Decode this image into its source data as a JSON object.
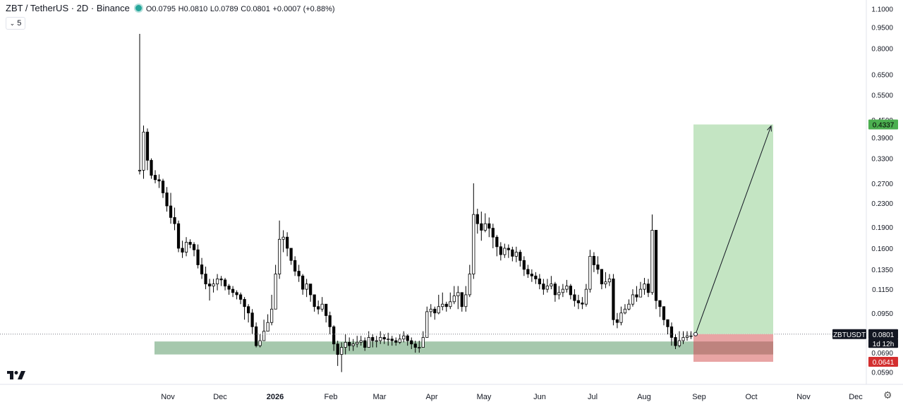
{
  "header": {
    "symbol": "ZBT / TetherUS · 2D · Binance",
    "open": "O0.0795",
    "high": "H0.0810",
    "low": "L0.0789",
    "close": "C0.0801",
    "change": "+0.0007 (+0.88%)",
    "indicator_button": "5",
    "status_color": "#26a69a"
  },
  "chart_data": {
    "type": "candlestick",
    "scale": "log",
    "ylim": [
      0.056,
      1.02
    ],
    "y_ticks": [
      1.1,
      0.95,
      0.8,
      0.65,
      0.55,
      0.45,
      0.39,
      0.33,
      0.27,
      0.23,
      0.19,
      0.16,
      0.135,
      0.115,
      0.095,
      0.069,
      0.059
    ],
    "y_tick_labels": [
      "1.1000",
      "0.9500",
      "0.8000",
      "0.6500",
      "0.5500",
      "0.4500",
      "0.3900",
      "0.3300",
      "0.2700",
      "0.2300",
      "0.1900",
      "0.1600",
      "0.1350",
      "0.1150",
      "0.0950",
      "0.0690",
      "0.0590"
    ],
    "x_ticks": [
      "Nov",
      "Dec",
      "2026",
      "Feb",
      "Mar",
      "Apr",
      "May",
      "Jun",
      "Jul",
      "Aug",
      "Sep",
      "Oct",
      "Nov",
      "Dec"
    ],
    "x_tick_bold": [
      "2026"
    ],
    "grid": false,
    "up_color": "#ffffff",
    "down_color": "#000000",
    "wick_color": "#000000",
    "closes": [
      0.3,
      0.408,
      0.325,
      0.288,
      0.278,
      0.275,
      0.25,
      0.225,
      0.205,
      0.195,
      0.16,
      0.155,
      0.168,
      0.165,
      0.158,
      0.14,
      0.13,
      0.12,
      0.118,
      0.12,
      0.125,
      0.124,
      0.118,
      0.115,
      0.112,
      0.11,
      0.106,
      0.1,
      0.095,
      0.085,
      0.073,
      0.076,
      0.082,
      0.088,
      0.098,
      0.13,
      0.172,
      0.175,
      0.16,
      0.145,
      0.133,
      0.128,
      0.115,
      0.12,
      0.11,
      0.1,
      0.098,
      0.102,
      0.093,
      0.085,
      0.074,
      0.068,
      0.072,
      0.075,
      0.073,
      0.074,
      0.075,
      0.076,
      0.072,
      0.078,
      0.076,
      0.076,
      0.078,
      0.077,
      0.077,
      0.076,
      0.075,
      0.077,
      0.079,
      0.076,
      0.074,
      0.072,
      0.072,
      0.078,
      0.096,
      0.098,
      0.095,
      0.1,
      0.102,
      0.1,
      0.104,
      0.109,
      0.112,
      0.1,
      0.11,
      0.13,
      0.21,
      0.195,
      0.185,
      0.195,
      0.188,
      0.175,
      0.162,
      0.152,
      0.16,
      0.158,
      0.15,
      0.155,
      0.145,
      0.135,
      0.13,
      0.128,
      0.125,
      0.12,
      0.115,
      0.118,
      0.12,
      0.11,
      0.112,
      0.115,
      0.118,
      0.11,
      0.105,
      0.103,
      0.102,
      0.115,
      0.15,
      0.14,
      0.135,
      0.12,
      0.122,
      0.125,
      0.09,
      0.088,
      0.095,
      0.098,
      0.102,
      0.11,
      0.108,
      0.115,
      0.12,
      0.112,
      0.185,
      0.105,
      0.1,
      0.09,
      0.085,
      0.078,
      0.073,
      0.076,
      0.078,
      0.079,
      0.079,
      0.0801
    ],
    "highs": [
      0.9,
      0.43,
      0.42,
      0.33,
      0.3,
      0.29,
      0.28,
      0.262,
      0.25,
      0.222,
      0.2,
      0.17,
      0.175,
      0.172,
      0.168,
      0.165,
      0.148,
      0.138,
      0.125,
      0.125,
      0.13,
      0.128,
      0.126,
      0.12,
      0.118,
      0.114,
      0.112,
      0.108,
      0.102,
      0.098,
      0.088,
      0.08,
      0.09,
      0.094,
      0.11,
      0.14,
      0.2,
      0.185,
      0.182,
      0.16,
      0.15,
      0.14,
      0.13,
      0.125,
      0.12,
      0.108,
      0.105,
      0.108,
      0.102,
      0.096,
      0.086,
      0.076,
      0.075,
      0.08,
      0.078,
      0.077,
      0.079,
      0.079,
      0.078,
      0.082,
      0.08,
      0.079,
      0.082,
      0.08,
      0.081,
      0.079,
      0.078,
      0.08,
      0.082,
      0.08,
      0.078,
      0.076,
      0.076,
      0.082,
      0.1,
      0.102,
      0.1,
      0.11,
      0.112,
      0.104,
      0.112,
      0.118,
      0.118,
      0.112,
      0.118,
      0.14,
      0.27,
      0.22,
      0.215,
      0.212,
      0.205,
      0.195,
      0.178,
      0.168,
      0.166,
      0.165,
      0.162,
      0.162,
      0.158,
      0.15,
      0.14,
      0.135,
      0.132,
      0.13,
      0.125,
      0.125,
      0.128,
      0.122,
      0.118,
      0.12,
      0.124,
      0.12,
      0.115,
      0.11,
      0.108,
      0.12,
      0.158,
      0.155,
      0.15,
      0.135,
      0.132,
      0.13,
      0.13,
      0.095,
      0.1,
      0.102,
      0.106,
      0.115,
      0.118,
      0.122,
      0.126,
      0.125,
      0.21,
      0.12,
      0.105,
      0.1,
      0.09,
      0.088,
      0.08,
      0.082,
      0.082,
      0.082,
      0.082,
      0.081
    ],
    "lows": [
      0.29,
      0.28,
      0.3,
      0.28,
      0.27,
      0.26,
      0.24,
      0.215,
      0.195,
      0.185,
      0.155,
      0.148,
      0.15,
      0.16,
      0.15,
      0.136,
      0.125,
      0.115,
      0.105,
      0.112,
      0.114,
      0.118,
      0.114,
      0.11,
      0.108,
      0.106,
      0.102,
      0.09,
      0.088,
      0.08,
      0.072,
      0.072,
      0.076,
      0.082,
      0.086,
      0.098,
      0.125,
      0.155,
      0.15,
      0.14,
      0.128,
      0.122,
      0.11,
      0.108,
      0.104,
      0.096,
      0.094,
      0.096,
      0.088,
      0.08,
      0.07,
      0.062,
      0.059,
      0.068,
      0.07,
      0.07,
      0.072,
      0.073,
      0.07,
      0.073,
      0.072,
      0.072,
      0.074,
      0.074,
      0.073,
      0.073,
      0.073,
      0.074,
      0.075,
      0.073,
      0.071,
      0.069,
      0.069,
      0.072,
      0.082,
      0.092,
      0.09,
      0.094,
      0.097,
      0.096,
      0.098,
      0.102,
      0.098,
      0.096,
      0.096,
      0.108,
      0.125,
      0.18,
      0.17,
      0.182,
      0.175,
      0.16,
      0.15,
      0.145,
      0.148,
      0.148,
      0.144,
      0.143,
      0.138,
      0.128,
      0.126,
      0.122,
      0.12,
      0.115,
      0.11,
      0.112,
      0.115,
      0.104,
      0.106,
      0.108,
      0.112,
      0.106,
      0.1,
      0.098,
      0.098,
      0.1,
      0.112,
      0.132,
      0.13,
      0.115,
      0.116,
      0.118,
      0.086,
      0.084,
      0.086,
      0.094,
      0.097,
      0.1,
      0.104,
      0.108,
      0.11,
      0.108,
      0.11,
      0.098,
      0.092,
      0.086,
      0.08,
      0.073,
      0.071,
      0.072,
      0.074,
      0.076,
      0.077,
      0.0789
    ],
    "zone": {
      "bottom": 0.068,
      "top": 0.0755,
      "color": "#5d9b6a"
    },
    "position": {
      "entry": 0.0801,
      "target": 0.4337,
      "stop": 0.0641,
      "profit_color": "#c4e5c3",
      "loss_color": "#e8a4a4",
      "arrow_color": "#131722"
    },
    "last_price": {
      "symbol_label": "ZBTUSDT",
      "price_label": "0.0801",
      "countdown": "1d 12h"
    },
    "target_label": "0.4337",
    "stop_label": "0.0641"
  }
}
